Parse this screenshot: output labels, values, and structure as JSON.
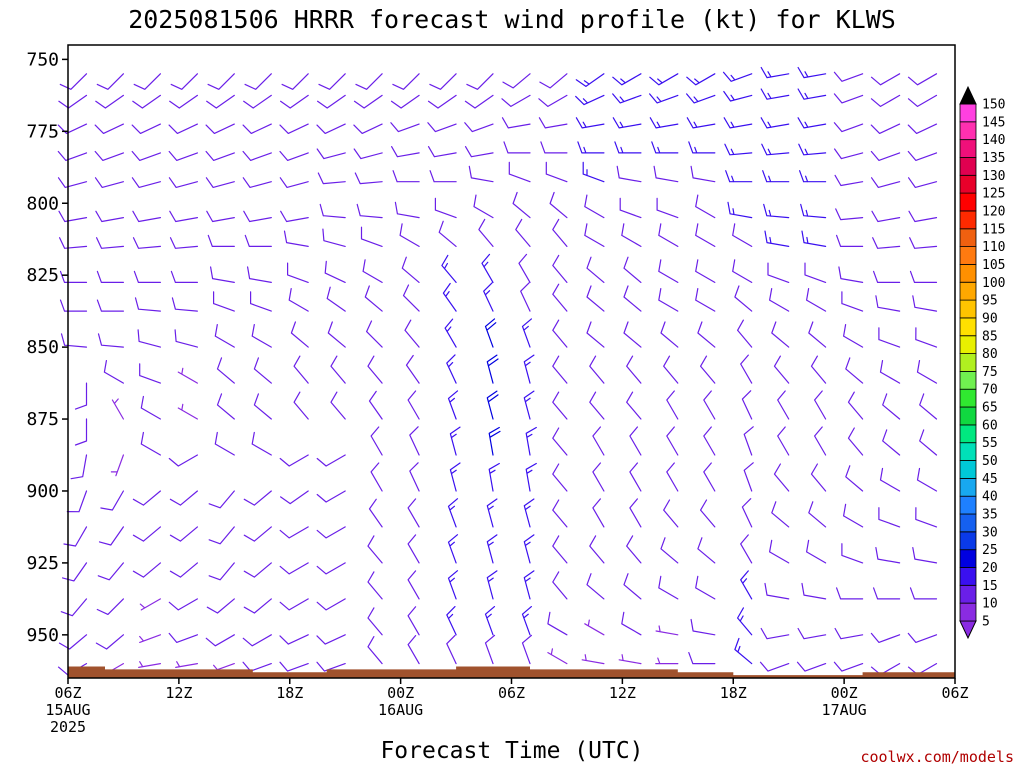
{
  "chart_data": {
    "type": "wind-barb time-height profile",
    "title": "2025081506 HRRR forecast wind profile (kt) for KLWS",
    "xlabel": "Forecast Time (UTC)",
    "ylabel": "",
    "ylim": [
      965,
      745
    ],
    "y_ticks": [
      "750",
      "775",
      "800",
      "825",
      "850",
      "875",
      "900",
      "925",
      "950"
    ],
    "x_ticks": [
      {
        "hour": 0,
        "line1": "06Z",
        "line2": "15AUG",
        "line3": "2025"
      },
      {
        "hour": 6,
        "line1": "12Z",
        "line2": "",
        "line3": ""
      },
      {
        "hour": 12,
        "line1": "18Z",
        "line2": "",
        "line3": ""
      },
      {
        "hour": 18,
        "line1": "00Z",
        "line2": "16AUG",
        "line3": ""
      },
      {
        "hour": 24,
        "line1": "06Z",
        "line2": "",
        "line3": ""
      },
      {
        "hour": 30,
        "line1": "12Z",
        "line2": "",
        "line3": ""
      },
      {
        "hour": 36,
        "line1": "18Z",
        "line2": "",
        "line3": ""
      },
      {
        "hour": 42,
        "line1": "00Z",
        "line2": "17AUG",
        "line3": ""
      },
      {
        "hour": 48,
        "line1": "06Z",
        "line2": "",
        "line3": ""
      }
    ],
    "x_range_hours": [
      0,
      48
    ],
    "grid": false,
    "units": "kt",
    "colorbar": {
      "labels": [
        "5",
        "10",
        "15",
        "20",
        "25",
        "30",
        "35",
        "40",
        "45",
        "50",
        "55",
        "60",
        "65",
        "70",
        "75",
        "80",
        "85",
        "90",
        "95",
        "100",
        "105",
        "110",
        "115",
        "120",
        "125",
        "130",
        "135",
        "140",
        "145",
        "150"
      ],
      "colors": [
        "#8a2be2",
        "#6a1fe8",
        "#3a10f0",
        "#0000e0",
        "#0a3ae8",
        "#1560f0",
        "#1e80ff",
        "#18a8f0",
        "#00c8d8",
        "#00e0b8",
        "#00e880",
        "#10d840",
        "#30e830",
        "#70f050",
        "#b0f020",
        "#e8f000",
        "#ffe000",
        "#ffc400",
        "#ffa800",
        "#ff9000",
        "#ff7a10",
        "#f06010",
        "#ff2a00",
        "#ff0000",
        "#e8002a",
        "#e00050",
        "#f0107a",
        "#ff30b0",
        "#ff40e0",
        "#000000"
      ]
    },
    "profile_hours": [
      1,
      3,
      5,
      7,
      9,
      11,
      13,
      15,
      17,
      19,
      21,
      23,
      25,
      27,
      29,
      31,
      33,
      35,
      37,
      39,
      41,
      43,
      45,
      47
    ],
    "profile_levels_hpa": [
      755,
      762.5,
      772.5,
      782.5,
      792.5,
      805,
      815,
      827.5,
      837.5,
      850,
      862.5,
      875,
      887.5,
      900,
      912.5,
      925,
      937.5,
      950,
      960
    ],
    "speed_kt": [
      [
        10,
        10,
        10,
        10,
        10,
        10,
        10,
        10,
        10,
        10,
        10,
        10,
        10,
        10,
        10,
        10,
        10,
        10,
        10
      ],
      [
        10,
        10,
        10,
        10,
        10,
        10,
        10,
        10,
        10,
        10,
        10,
        5,
        5,
        10,
        10,
        10,
        10,
        10,
        5
      ],
      [
        10,
        10,
        10,
        10,
        10,
        10,
        10,
        10,
        10,
        10,
        10,
        10,
        10,
        10,
        10,
        10,
        5,
        5,
        5
      ],
      [
        10,
        10,
        10,
        10,
        10,
        10,
        10,
        10,
        10,
        10,
        5,
        5,
        10,
        10,
        10,
        10,
        10,
        10,
        5
      ],
      [
        10,
        10,
        10,
        10,
        10,
        10,
        10,
        10,
        10,
        10,
        10,
        10,
        10,
        10,
        10,
        10,
        10,
        10,
        5
      ],
      [
        10,
        10,
        10,
        10,
        10,
        10,
        10,
        10,
        10,
        10,
        10,
        10,
        10,
        10,
        10,
        10,
        10,
        10,
        10
      ],
      [
        10,
        10,
        10,
        10,
        10,
        10,
        10,
        10,
        10,
        10,
        10,
        10,
        10,
        10,
        10,
        10,
        10,
        10,
        10
      ],
      [
        10,
        10,
        10,
        10,
        10,
        10,
        10,
        10,
        10,
        10,
        10,
        10,
        10,
        10,
        10,
        10,
        10,
        10,
        10
      ],
      [
        10,
        10,
        10,
        10,
        10,
        10,
        10,
        10,
        10,
        10,
        10,
        10,
        10,
        10,
        10,
        10,
        10,
        10,
        10
      ],
      [
        10,
        10,
        10,
        10,
        10,
        10,
        10,
        10,
        10,
        10,
        10,
        10,
        10,
        10,
        10,
        10,
        10,
        10,
        10
      ],
      [
        10,
        10,
        10,
        10,
        10,
        10,
        10,
        15,
        15,
        15,
        15,
        15,
        15,
        15,
        15,
        15,
        15,
        15,
        10
      ],
      [
        10,
        10,
        10,
        10,
        10,
        10,
        10,
        15,
        15,
        20,
        20,
        20,
        20,
        15,
        15,
        15,
        15,
        15,
        10
      ],
      [
        10,
        10,
        10,
        10,
        10,
        10,
        10,
        10,
        10,
        15,
        15,
        15,
        15,
        15,
        15,
        15,
        15,
        15,
        10
      ],
      [
        10,
        10,
        10,
        10,
        10,
        10,
        10,
        10,
        10,
        10,
        10,
        10,
        10,
        10,
        10,
        10,
        10,
        10,
        5
      ],
      [
        15,
        15,
        15,
        15,
        15,
        10,
        10,
        10,
        10,
        10,
        10,
        10,
        10,
        10,
        10,
        10,
        10,
        5,
        5
      ],
      [
        15,
        15,
        15,
        15,
        10,
        10,
        10,
        10,
        10,
        10,
        10,
        10,
        10,
        10,
        10,
        10,
        10,
        10,
        5
      ],
      [
        15,
        15,
        15,
        15,
        10,
        10,
        10,
        10,
        10,
        10,
        10,
        10,
        10,
        10,
        10,
        10,
        10,
        5,
        5
      ],
      [
        15,
        15,
        15,
        15,
        10,
        10,
        10,
        10,
        10,
        10,
        10,
        10,
        10,
        10,
        10,
        10,
        10,
        10,
        10
      ],
      [
        15,
        15,
        15,
        15,
        15,
        15,
        10,
        10,
        10,
        10,
        10,
        10,
        10,
        10,
        10,
        10,
        15,
        15,
        15
      ],
      [
        15,
        15,
        15,
        15,
        15,
        15,
        15,
        10,
        10,
        10,
        10,
        10,
        10,
        10,
        10,
        10,
        10,
        10,
        10
      ],
      [
        15,
        15,
        15,
        15,
        15,
        15,
        15,
        10,
        10,
        10,
        10,
        10,
        10,
        10,
        10,
        10,
        10,
        10,
        10
      ],
      [
        10,
        10,
        10,
        10,
        10,
        10,
        10,
        10,
        10,
        10,
        10,
        10,
        10,
        10,
        10,
        10,
        10,
        10,
        10
      ],
      [
        10,
        10,
        10,
        10,
        10,
        10,
        10,
        10,
        10,
        10,
        10,
        10,
        10,
        10,
        10,
        10,
        10,
        10,
        10
      ],
      [
        10,
        10,
        10,
        10,
        10,
        10,
        10,
        10,
        10,
        10,
        10,
        10,
        10,
        10,
        10,
        10,
        10,
        10,
        10
      ]
    ],
    "direction_deg": [
      [
        225,
        235,
        245,
        250,
        255,
        260,
        265,
        270,
        270,
        275,
        180,
        180,
        190,
        200,
        210,
        215,
        220,
        230,
        240
      ],
      [
        225,
        235,
        245,
        250,
        255,
        260,
        265,
        270,
        270,
        275,
        300,
        330,
        200,
        210,
        215,
        220,
        225,
        230,
        240
      ],
      [
        225,
        235,
        245,
        250,
        255,
        260,
        265,
        270,
        275,
        285,
        290,
        300,
        300,
        230,
        230,
        230,
        240,
        250,
        260
      ],
      [
        225,
        235,
        245,
        250,
        255,
        260,
        265,
        270,
        275,
        285,
        300,
        300,
        240,
        230,
        230,
        230,
        240,
        250,
        260
      ],
      [
        225,
        235,
        245,
        250,
        255,
        260,
        270,
        280,
        290,
        300,
        310,
        310,
        300,
        220,
        220,
        220,
        230,
        240,
        250
      ],
      [
        225,
        235,
        245,
        250,
        255,
        260,
        270,
        280,
        290,
        300,
        310,
        310,
        300,
        230,
        230,
        230,
        230,
        240,
        250
      ],
      [
        225,
        235,
        245,
        250,
        255,
        260,
        280,
        290,
        300,
        310,
        320,
        320,
        240,
        235,
        240,
        240,
        240,
        245,
        250
      ],
      [
        225,
        235,
        245,
        255,
        265,
        275,
        285,
        295,
        305,
        310,
        320,
        320,
        240,
        240,
        240,
        240,
        240,
        245,
        250
      ],
      [
        225,
        235,
        245,
        255,
        265,
        275,
        290,
        300,
        310,
        315,
        320,
        325,
        330,
        330,
        325,
        320,
        320,
        320,
        320
      ],
      [
        225,
        235,
        250,
        260,
        270,
        280,
        300,
        310,
        315,
        320,
        325,
        330,
        335,
        335,
        330,
        330,
        330,
        330,
        330
      ],
      [
        225,
        235,
        250,
        260,
        270,
        290,
        310,
        320,
        325,
        330,
        335,
        340,
        345,
        345,
        340,
        340,
        340,
        335,
        335
      ],
      [
        225,
        235,
        250,
        260,
        280,
        300,
        320,
        330,
        335,
        340,
        345,
        345,
        350,
        350,
        345,
        345,
        345,
        340,
        340
      ],
      [
        230,
        240,
        260,
        270,
        290,
        310,
        320,
        330,
        335,
        340,
        345,
        345,
        350,
        350,
        345,
        345,
        345,
        340,
        340
      ],
      [
        230,
        240,
        260,
        270,
        290,
        310,
        320,
        320,
        320,
        320,
        320,
        320,
        320,
        320,
        320,
        320,
        320,
        300,
        300
      ],
      [
        235,
        245,
        260,
        270,
        290,
        300,
        300,
        310,
        310,
        310,
        320,
        320,
        330,
        330,
        330,
        320,
        310,
        300,
        280
      ],
      [
        240,
        250,
        260,
        270,
        280,
        290,
        300,
        310,
        310,
        310,
        320,
        320,
        330,
        330,
        330,
        320,
        310,
        300,
        280
      ],
      [
        240,
        250,
        260,
        270,
        280,
        290,
        300,
        300,
        300,
        310,
        320,
        330,
        330,
        330,
        320,
        310,
        300,
        280,
        270
      ],
      [
        240,
        250,
        260,
        270,
        280,
        300,
        300,
        300,
        300,
        310,
        320,
        330,
        330,
        330,
        320,
        310,
        300,
        280,
        270
      ],
      [
        250,
        255,
        260,
        265,
        270,
        280,
        300,
        300,
        310,
        320,
        330,
        335,
        340,
        340,
        335,
        330,
        330,
        320,
        310
      ],
      [
        260,
        260,
        260,
        265,
        270,
        275,
        280,
        290,
        300,
        310,
        320,
        330,
        330,
        320,
        310,
        300,
        280,
        260,
        250
      ],
      [
        260,
        260,
        260,
        265,
        270,
        275,
        280,
        290,
        300,
        310,
        320,
        330,
        330,
        320,
        310,
        300,
        280,
        260,
        250
      ],
      [
        250,
        250,
        250,
        255,
        260,
        265,
        270,
        280,
        290,
        300,
        310,
        320,
        320,
        310,
        300,
        290,
        270,
        260,
        250
      ],
      [
        240,
        240,
        245,
        250,
        255,
        260,
        265,
        270,
        280,
        290,
        300,
        310,
        310,
        300,
        290,
        280,
        270,
        250,
        240
      ],
      [
        240,
        240,
        245,
        250,
        255,
        260,
        265,
        270,
        280,
        290,
        300,
        310,
        310,
        300,
        290,
        280,
        270,
        250,
        240
      ]
    ],
    "terrain_hpa": [
      961,
      961,
      962,
      962,
      962,
      962,
      962,
      962,
      962,
      962,
      963,
      963,
      963,
      963,
      962,
      962,
      962,
      962,
      962,
      962,
      962,
      961,
      961,
      961,
      961,
      962,
      962,
      962,
      962,
      962,
      962,
      962,
      962,
      963,
      963,
      963,
      964,
      964,
      964,
      964,
      964,
      964,
      964,
      963,
      963,
      963,
      963,
      963,
      963
    ]
  },
  "credit": "coolwx.com/models",
  "colors": {
    "terrain": "#a0522d",
    "axis": "#000000"
  }
}
